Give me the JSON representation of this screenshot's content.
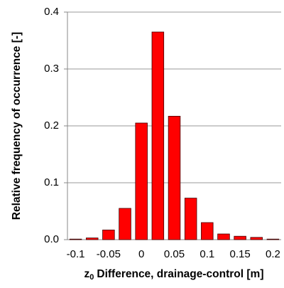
{
  "chart_data": {
    "type": "bar",
    "ylabel": "Relative frequency of occurrence [-]",
    "xlabel": {
      "main": "z",
      "sub": "0",
      "rest": "Difference, drainage-control [m]"
    },
    "categories": [
      "-0.1",
      null,
      "-0.05",
      null,
      "0",
      null,
      "0.05",
      null,
      "0.1",
      null,
      "0.15",
      null,
      "0.2"
    ],
    "values": [
      0.001,
      0.003,
      0.017,
      0.055,
      0.205,
      0.365,
      0.217,
      0.073,
      0.03,
      0.01,
      0.006,
      0.004,
      0.001
    ],
    "color": "#ff0000",
    "ylim": [
      0,
      0.4
    ],
    "yticks": [
      {
        "value": 0,
        "label": "0.0"
      },
      0.1,
      0.2,
      0.3,
      0.4
    ],
    "grid": true
  }
}
